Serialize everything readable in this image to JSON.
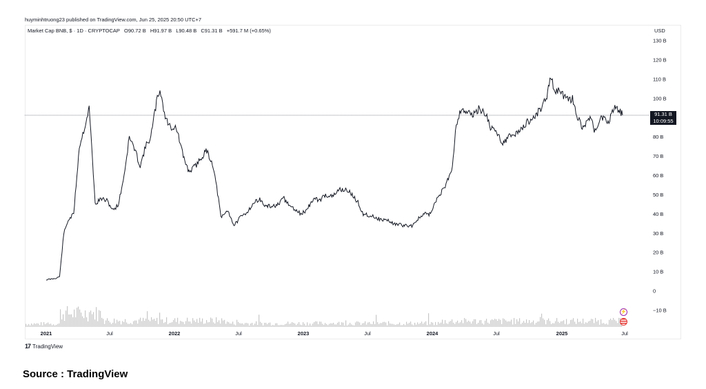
{
  "header": {
    "publisher_text": "huyminhtruong23 published on TradingView.com, Jun 25, 2025 20:50 UTC+7"
  },
  "symbol_bar": {
    "title": "Market Cap BNB, $ · 1D · CRYPTOCAP",
    "open": "O90.72 B",
    "high": "H91.97 B",
    "low": "L90.48 B",
    "close": "C91.31 B",
    "change": "+591.7 M (+0.65%)"
  },
  "currency": "USD",
  "last_price": {
    "value": "91.31 B",
    "countdown": "10:09:55"
  },
  "footer": {
    "logo_text": "TradingView",
    "source": "Source : TradingView"
  },
  "icons": [
    "lightning-icon",
    "us-flag-icon"
  ],
  "colors": {
    "candle": "#131722",
    "volume": "#c7c7c7",
    "price_line": "#787b86",
    "lightning": "#9c27b0",
    "flag": "#e53935"
  },
  "chart_data": {
    "type": "line",
    "title": "",
    "xlabel": "",
    "ylabel": "",
    "x_ticks": [
      "2021",
      "Jul",
      "2022",
      "Jul",
      "2023",
      "Jul",
      "2024",
      "Jul",
      "2025",
      "Jul"
    ],
    "x_ticks_bold": [
      true,
      false,
      true,
      false,
      true,
      false,
      true,
      false,
      true,
      false
    ],
    "y_ticks": [
      "130 B",
      "120 B",
      "110 B",
      "100 B",
      "90 B",
      "80 B",
      "70 B",
      "60 B",
      "50 B",
      "40 B",
      "30 B",
      "20 B",
      "10 B",
      "0",
      "−10 B"
    ],
    "y_tick_values": [
      130,
      120,
      110,
      100,
      90,
      80,
      70,
      60,
      50,
      40,
      30,
      20,
      10,
      0,
      -10
    ],
    "ylim": [
      -14,
      135
    ],
    "y_unit": "B USD",
    "grid": false,
    "series": [
      {
        "values_x": [
          "2021-01-01",
          "2021-01-25",
          "2021-02-08",
          "2021-02-20",
          "2021-03-05",
          "2021-03-20",
          "2021-04-05",
          "2021-04-20",
          "2021-05-03",
          "2021-05-12",
          "2021-05-20",
          "2021-06-05",
          "2021-06-22",
          "2021-07-10",
          "2021-07-25",
          "2021-08-10",
          "2021-08-25",
          "2021-09-06",
          "2021-09-25",
          "2021-10-10",
          "2021-10-25",
          "2021-11-10",
          "2021-11-20",
          "2021-12-05",
          "2021-12-20",
          "2022-01-05",
          "2022-01-25",
          "2022-02-10",
          "2022-03-01",
          "2022-03-20",
          "2022-04-02",
          "2022-04-20",
          "2022-05-05",
          "2022-05-12",
          "2022-06-01",
          "2022-06-18",
          "2022-07-05",
          "2022-07-25",
          "2022-08-10",
          "2022-08-28",
          "2022-09-15",
          "2022-10-05",
          "2022-10-25",
          "2022-11-07",
          "2022-11-10",
          "2022-11-25",
          "2022-12-10",
          "2022-12-25",
          "2023-01-10",
          "2023-01-30",
          "2023-02-15",
          "2023-03-05",
          "2023-03-25",
          "2023-04-15",
          "2023-05-10",
          "2023-06-05",
          "2023-06-20",
          "2023-07-15",
          "2023-08-10",
          "2023-08-25",
          "2023-09-15",
          "2023-10-15",
          "2023-11-05",
          "2023-11-20",
          "2023-12-10",
          "2023-12-28",
          "2024-01-15",
          "2024-02-10",
          "2024-02-28",
          "2024-03-10",
          "2024-03-25",
          "2024-04-10",
          "2024-04-25",
          "2024-05-15",
          "2024-06-05",
          "2024-06-15",
          "2024-07-05",
          "2024-07-20",
          "2024-08-05",
          "2024-08-20",
          "2024-09-10",
          "2024-09-30",
          "2024-10-15",
          "2024-11-05",
          "2024-11-20",
          "2024-12-03",
          "2024-12-15",
          "2024-12-30",
          "2025-01-20",
          "2025-02-03",
          "2025-02-15",
          "2025-03-05",
          "2025-03-25",
          "2025-04-08",
          "2025-04-25",
          "2025-05-15",
          "2025-06-01",
          "2025-06-12",
          "2025-06-25"
        ],
        "values_y": [
          5.9,
          6.5,
          7.5,
          30,
          37,
          40,
          75,
          85,
          95,
          70,
          45,
          48,
          47,
          42,
          45,
          60,
          80,
          75,
          65,
          75,
          80,
          98,
          105,
          90,
          85,
          85,
          70,
          62,
          65,
          70,
          73,
          65,
          48,
          38,
          42,
          34,
          38,
          41,
          45,
          48,
          44,
          44,
          45,
          49,
          47,
          44,
          42,
          40,
          42,
          48,
          47,
          50,
          49,
          53,
          52,
          46,
          40,
          39,
          37,
          37,
          35,
          34,
          34,
          37,
          40,
          40,
          48,
          55,
          65,
          87,
          95,
          93,
          91,
          95,
          91,
          85,
          82,
          77,
          80,
          81,
          84,
          88,
          90,
          95,
          100,
          110,
          105,
          103,
          99,
          100,
          90,
          85,
          90,
          83,
          91,
          87,
          96,
          95,
          91.31
        ]
      }
    ],
    "volume_note": "Volume histogram shown at bottom (unlabeled)"
  }
}
